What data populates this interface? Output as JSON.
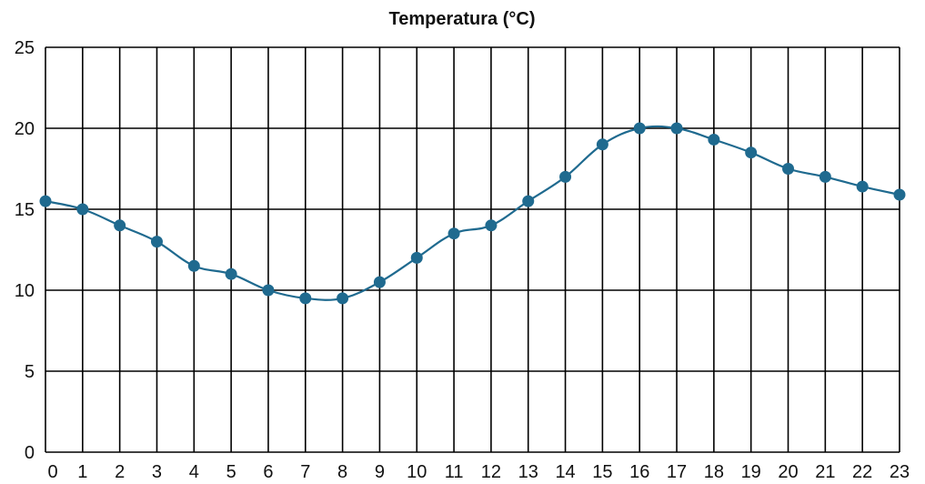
{
  "chart_data": {
    "type": "line",
    "title": "Temperatura (°C)",
    "xlabel": "",
    "ylabel": "",
    "x": [
      0,
      1,
      2,
      3,
      4,
      5,
      6,
      7,
      8,
      9,
      10,
      11,
      12,
      13,
      14,
      15,
      16,
      17,
      18,
      19,
      20,
      21,
      22,
      23
    ],
    "series": [
      {
        "values": [
          15.5,
          15,
          14,
          13,
          11.5,
          11,
          10,
          9.5,
          9.5,
          10.5,
          12,
          13.5,
          14,
          15.5,
          17,
          19,
          20,
          20,
          19.3,
          18.5,
          17.5,
          17,
          16.4,
          15.9
        ],
        "color": "#1f6a8f"
      }
    ],
    "xlim": [
      0,
      23
    ],
    "ylim": [
      0,
      25
    ],
    "y_ticks": [
      0,
      5,
      10,
      15,
      20,
      25
    ],
    "x_ticks": [
      0,
      1,
      2,
      3,
      4,
      5,
      6,
      7,
      8,
      9,
      10,
      11,
      12,
      13,
      14,
      15,
      16,
      17,
      18,
      19,
      20,
      21,
      22,
      23
    ],
    "grid": true,
    "grid_color": "#000000"
  }
}
